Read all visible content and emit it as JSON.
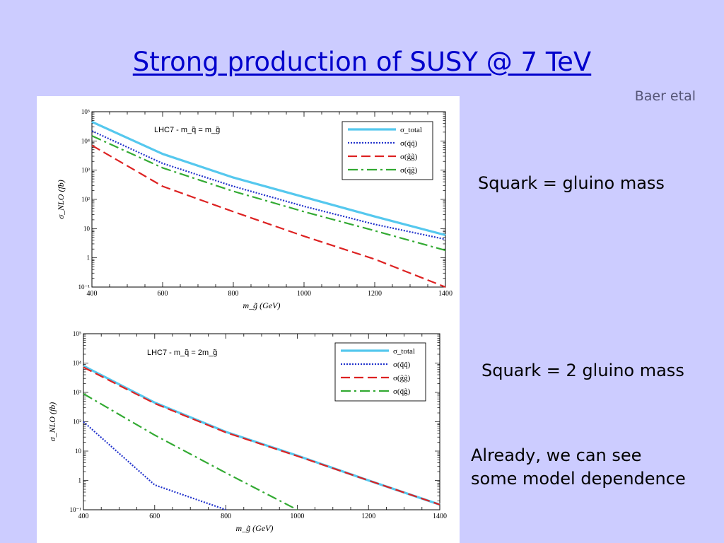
{
  "slide": {
    "title": "Strong production of SUSY @ 7 TeV",
    "citation": "Baer etal",
    "note_equal": "Squark = gluino mass",
    "note_double": "Squark = 2 gluino mass",
    "note_model_line1": "Already, we can see",
    "note_model_line2": "some model dependence"
  },
  "chart_data": [
    {
      "type": "line",
      "annotation": "LHC7 - m_q̃ = m_g̃",
      "xlabel": "m_g̃ (GeV)",
      "ylabel": "σ_NLO (fb)",
      "xlim": [
        400,
        1400
      ],
      "ylim": [
        0.1,
        100000
      ],
      "yscale": "log",
      "x_ticks": [
        400,
        600,
        800,
        1000,
        1200,
        1400
      ],
      "y_ticks": [
        {
          "value": 0.1,
          "label": "10⁻¹"
        },
        {
          "value": 1,
          "label": "1"
        },
        {
          "value": 10,
          "label": "10"
        },
        {
          "value": 100,
          "label": "10²"
        },
        {
          "value": 1000,
          "label": "10³"
        },
        {
          "value": 10000,
          "label": "10⁴"
        },
        {
          "value": 100000,
          "label": "10⁵"
        }
      ],
      "grid": false,
      "legend_position": "top-right",
      "x": [
        400,
        600,
        800,
        1000,
        1200,
        1400
      ],
      "series": [
        {
          "name": "σ_total",
          "color": "#55c8ee",
          "style": "solid",
          "values": [
            45000,
            3600,
            560,
            120,
            26,
            6
          ]
        },
        {
          "name": "σ(q̃q̃)",
          "color": "#2233cc",
          "style": "dotted",
          "values": [
            22000,
            1700,
            280,
            58,
            14,
            4.3
          ]
        },
        {
          "name": "σ(g̃g̃)",
          "color": "#dd2222",
          "style": "dashed",
          "values": [
            7000,
            280,
            38,
            5.5,
            0.9,
            0.1
          ]
        },
        {
          "name": "σ(q̃g̃)",
          "color": "#33aa33",
          "style": "dashdot",
          "values": [
            15000,
            1200,
            190,
            38,
            8.5,
            1.8
          ]
        }
      ]
    },
    {
      "type": "line",
      "annotation": "LHC7 - m_q̃ = 2m_g̃",
      "xlabel": "m_g̃ (GeV)",
      "ylabel": "σ_NLO (fb)",
      "xlim": [
        400,
        1400
      ],
      "ylim": [
        0.1,
        100000
      ],
      "yscale": "log",
      "x_ticks": [
        400,
        600,
        800,
        1000,
        1200,
        1400
      ],
      "y_ticks": [
        {
          "value": 0.1,
          "label": "10⁻¹"
        },
        {
          "value": 1,
          "label": "1"
        },
        {
          "value": 10,
          "label": "10"
        },
        {
          "value": 100,
          "label": "10²"
        },
        {
          "value": 1000,
          "label": "10³"
        },
        {
          "value": 10000,
          "label": "10⁴"
        },
        {
          "value": 100000,
          "label": "10⁵"
        }
      ],
      "grid": false,
      "legend_position": "top-right",
      "x": [
        400,
        600,
        800,
        1000,
        1200,
        1400
      ],
      "series": [
        {
          "name": "σ_total",
          "color": "#55c8ee",
          "style": "solid",
          "x": [
            400,
            600,
            800,
            1000,
            1200,
            1400
          ],
          "values": [
            8000,
            450,
            45,
            7,
            1,
            0.15
          ]
        },
        {
          "name": "σ(q̃q̃)",
          "color": "#2233cc",
          "style": "dotted",
          "x": [
            400,
            600,
            800
          ],
          "values": [
            100,
            0.7,
            0.1
          ]
        },
        {
          "name": "σ(g̃g̃)",
          "color": "#dd2222",
          "style": "dashed",
          "x": [
            400,
            600,
            800,
            1000,
            1200,
            1400
          ],
          "values": [
            7200,
            420,
            43,
            6.8,
            1,
            0.15
          ]
        },
        {
          "name": "σ(q̃g̃)",
          "color": "#33aa33",
          "style": "dashdot",
          "x": [
            400,
            600,
            800,
            1000
          ],
          "values": [
            900,
            35,
            1.8,
            0.1
          ]
        }
      ]
    }
  ]
}
